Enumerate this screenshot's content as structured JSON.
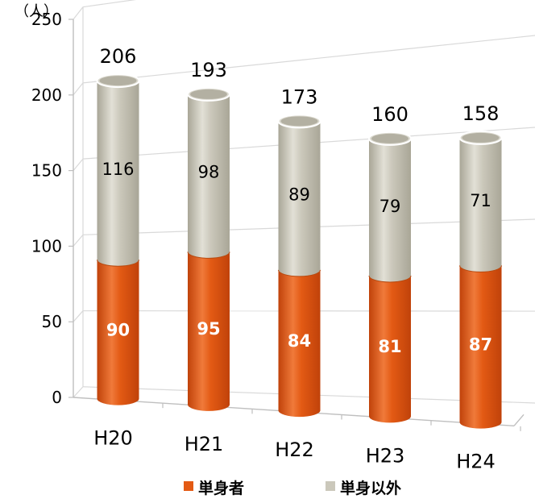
{
  "chart_data": {
    "type": "bar",
    "stacked": true,
    "style": "3d-cylinder",
    "unit": "（人）",
    "categories": [
      "H20",
      "H21",
      "H22",
      "H23",
      "H24"
    ],
    "series": [
      {
        "name": "単身者",
        "values": [
          90,
          95,
          84,
          81,
          87
        ],
        "color": "#e35a14"
      },
      {
        "name": "単身以外",
        "values": [
          116,
          98,
          89,
          79,
          71
        ],
        "color": "#cbc8bb"
      }
    ],
    "totals": [
      206,
      193,
      173,
      160,
      158
    ],
    "yticks": [
      "0",
      "50",
      "100",
      "150",
      "200",
      "250"
    ],
    "ylim": [
      0,
      250
    ],
    "grid": true,
    "legend_position": "bottom"
  }
}
